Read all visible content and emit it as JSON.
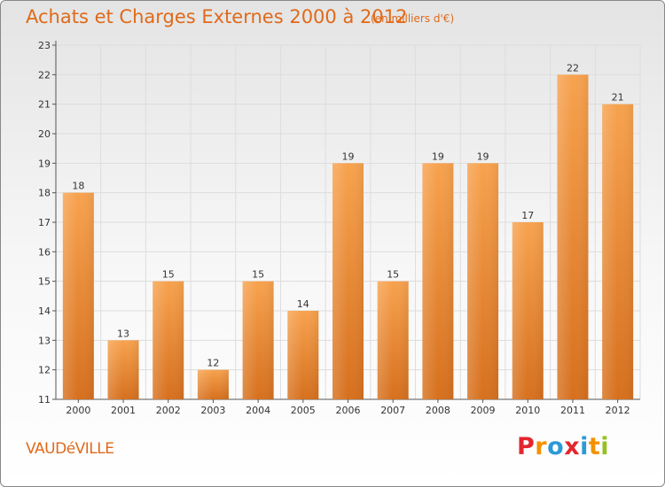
{
  "header": {
    "title": "Achats et Charges Externes 2000 à 2012",
    "subtitle": "(en milliers d'€)"
  },
  "footer": {
    "commune": "VAUDéVILLE",
    "logo_letters": [
      "P",
      "r",
      "o",
      "x",
      "i",
      "t",
      "i"
    ],
    "logo_colors": [
      "#e3262e",
      "#f39200",
      "#2b9ad6",
      "#e3262e",
      "#2b9ad6",
      "#f39200",
      "#95c11f"
    ]
  },
  "chart_data": {
    "type": "bar",
    "categories": [
      "2000",
      "2001",
      "2002",
      "2003",
      "2004",
      "2005",
      "2006",
      "2007",
      "2008",
      "2009",
      "2010",
      "2011",
      "2012"
    ],
    "values": [
      18,
      13,
      15,
      12,
      15,
      14,
      19,
      15,
      19,
      19,
      17,
      22,
      21
    ],
    "title": "Achats et Charges Externes 2000 à 2012",
    "subtitle": "(en milliers d'€)",
    "ylim": [
      11,
      23
    ],
    "yticks": [
      "11",
      "12",
      "13",
      "14",
      "15",
      "16",
      "17",
      "18",
      "19",
      "20",
      "21",
      "22",
      "23"
    ],
    "grid": true,
    "legend": "none",
    "bar_color": "#f0923a"
  }
}
